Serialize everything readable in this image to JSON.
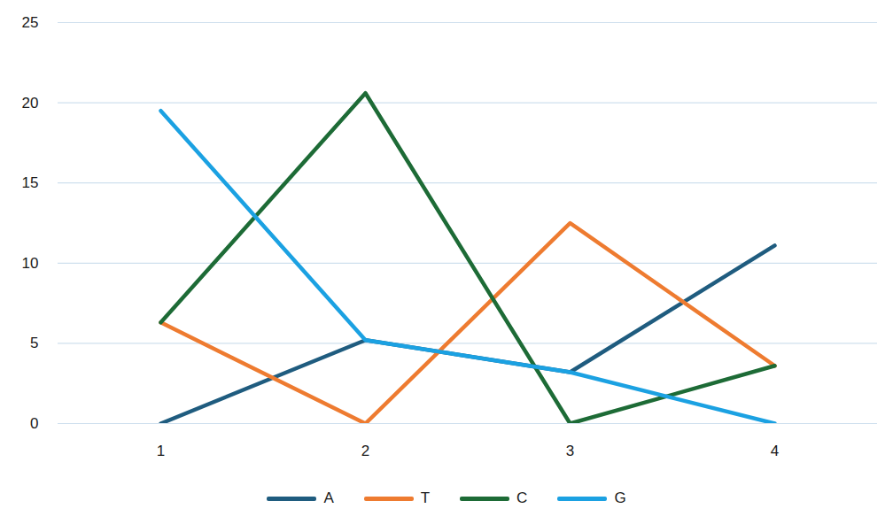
{
  "chart_data": {
    "type": "line",
    "categories": [
      "1",
      "2",
      "3",
      "4"
    ],
    "series": [
      {
        "name": "A",
        "color": "#1f5c7f",
        "values": [
          0,
          5.2,
          3.2,
          11.1
        ]
      },
      {
        "name": "T",
        "color": "#ee7b30",
        "values": [
          6.3,
          0,
          12.5,
          3.6
        ]
      },
      {
        "name": "C",
        "color": "#1d6b36",
        "values": [
          6.3,
          20.6,
          0,
          3.6
        ]
      },
      {
        "name": "G",
        "color": "#1ba1e2",
        "values": [
          19.5,
          5.2,
          3.2,
          0
        ]
      }
    ],
    "ylim": [
      0,
      25
    ],
    "yticks": [
      0,
      5,
      10,
      15,
      20,
      25
    ],
    "grid": true,
    "legend": "bottom"
  }
}
